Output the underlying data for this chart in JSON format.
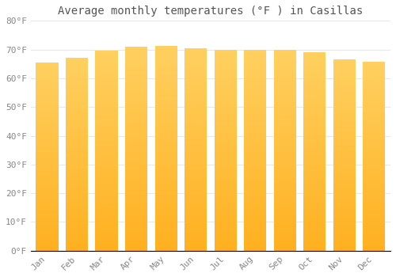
{
  "title": "Average monthly temperatures (°F ) in Casillas",
  "months": [
    "Jan",
    "Feb",
    "Mar",
    "Apr",
    "May",
    "Jun",
    "Jul",
    "Aug",
    "Sep",
    "Oct",
    "Nov",
    "Dec"
  ],
  "values": [
    65.5,
    67.0,
    69.5,
    71.0,
    71.2,
    70.5,
    70.0,
    70.0,
    69.8,
    69.0,
    66.5,
    65.8
  ],
  "bar_color_bottom": "#FFB020",
  "bar_color_top": "#FFD060",
  "background_color": "#ffffff",
  "grid_color": "#e8e8e8",
  "ytick_labels": [
    "0°F",
    "10°F",
    "20°F",
    "30°F",
    "40°F",
    "50°F",
    "60°F",
    "70°F",
    "80°F"
  ],
  "ytick_values": [
    0,
    10,
    20,
    30,
    40,
    50,
    60,
    70,
    80
  ],
  "ylim": [
    0,
    80
  ],
  "title_fontsize": 10,
  "tick_fontsize": 8,
  "bar_width": 0.75
}
